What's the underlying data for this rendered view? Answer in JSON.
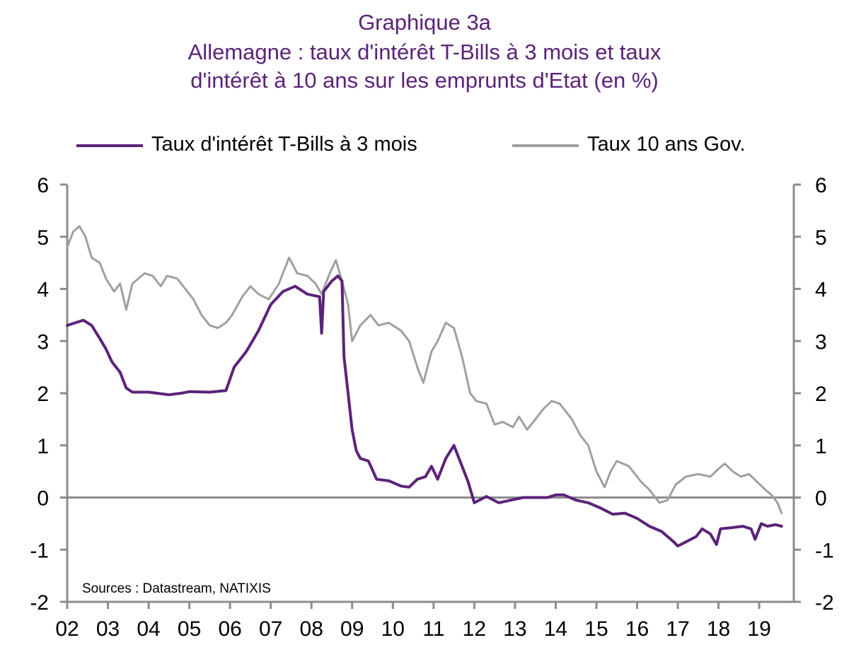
{
  "chart_data": {
    "type": "line",
    "title": "Graphique 3a",
    "subtitle_line1": "Allemagne : taux d'intérêt T-Bills à 3 mois et taux",
    "subtitle_line2": "d'intérêt à 10 ans sur les emprunts d'Etat (en %)",
    "source": "Sources : Datastream, NATIXIS",
    "ylim": [
      -2,
      6
    ],
    "y_ticks": [
      "-2",
      "-1",
      "0",
      "1",
      "2",
      "3",
      "4",
      "5",
      "6"
    ],
    "x_tick_labels": [
      "02",
      "03",
      "04",
      "05",
      "06",
      "07",
      "08",
      "09",
      "10",
      "11",
      "12",
      "13",
      "14",
      "15",
      "16",
      "17",
      "18",
      "19"
    ],
    "xlim": [
      2002.0,
      2019.85
    ],
    "legend_position": "top",
    "series": [
      {
        "name": "Taux d'intérêt T-Bills à 3 mois",
        "color": "#5b2379",
        "points": [
          [
            2002.0,
            3.3
          ],
          [
            2002.2,
            3.35
          ],
          [
            2002.4,
            3.4
          ],
          [
            2002.6,
            3.3
          ],
          [
            2002.8,
            3.05
          ],
          [
            2002.95,
            2.85
          ],
          [
            2003.1,
            2.6
          ],
          [
            2003.3,
            2.4
          ],
          [
            2003.45,
            2.1
          ],
          [
            2003.6,
            2.02
          ],
          [
            2004.0,
            2.02
          ],
          [
            2004.2,
            2.0
          ],
          [
            2004.5,
            1.97
          ],
          [
            2004.8,
            2.0
          ],
          [
            2005.0,
            2.03
          ],
          [
            2005.5,
            2.02
          ],
          [
            2005.9,
            2.05
          ],
          [
            2006.1,
            2.5
          ],
          [
            2006.4,
            2.8
          ],
          [
            2006.7,
            3.2
          ],
          [
            2007.0,
            3.7
          ],
          [
            2007.3,
            3.95
          ],
          [
            2007.6,
            4.05
          ],
          [
            2007.9,
            3.9
          ],
          [
            2008.2,
            3.85
          ],
          [
            2008.25,
            3.15
          ],
          [
            2008.3,
            3.95
          ],
          [
            2008.5,
            4.15
          ],
          [
            2008.65,
            4.25
          ],
          [
            2008.75,
            4.15
          ],
          [
            2008.8,
            2.7
          ],
          [
            2008.9,
            2.0
          ],
          [
            2009.0,
            1.3
          ],
          [
            2009.1,
            0.9
          ],
          [
            2009.2,
            0.75
          ],
          [
            2009.4,
            0.7
          ],
          [
            2009.6,
            0.35
          ],
          [
            2009.9,
            0.32
          ],
          [
            2010.2,
            0.22
          ],
          [
            2010.4,
            0.2
          ],
          [
            2010.6,
            0.35
          ],
          [
            2010.8,
            0.4
          ],
          [
            2010.95,
            0.6
          ],
          [
            2011.1,
            0.35
          ],
          [
            2011.3,
            0.75
          ],
          [
            2011.5,
            1.0
          ],
          [
            2011.65,
            0.7
          ],
          [
            2011.85,
            0.3
          ],
          [
            2012.0,
            -0.1
          ],
          [
            2012.3,
            0.02
          ],
          [
            2012.6,
            -0.1
          ],
          [
            2012.9,
            -0.05
          ],
          [
            2013.2,
            0.0
          ],
          [
            2013.5,
            0.0
          ],
          [
            2013.8,
            0.0
          ],
          [
            2014.0,
            0.05
          ],
          [
            2014.2,
            0.05
          ],
          [
            2014.5,
            -0.05
          ],
          [
            2014.8,
            -0.1
          ],
          [
            2015.1,
            -0.2
          ],
          [
            2015.4,
            -0.32
          ],
          [
            2015.7,
            -0.3
          ],
          [
            2016.0,
            -0.4
          ],
          [
            2016.3,
            -0.55
          ],
          [
            2016.6,
            -0.65
          ],
          [
            2016.9,
            -0.85
          ],
          [
            2017.0,
            -0.93
          ],
          [
            2017.2,
            -0.85
          ],
          [
            2017.45,
            -0.75
          ],
          [
            2017.6,
            -0.6
          ],
          [
            2017.8,
            -0.7
          ],
          [
            2017.95,
            -0.9
          ],
          [
            2018.05,
            -0.6
          ],
          [
            2018.3,
            -0.58
          ],
          [
            2018.6,
            -0.55
          ],
          [
            2018.8,
            -0.6
          ],
          [
            2018.9,
            -0.8
          ],
          [
            2019.05,
            -0.5
          ],
          [
            2019.2,
            -0.55
          ],
          [
            2019.4,
            -0.52
          ],
          [
            2019.55,
            -0.55
          ]
        ]
      },
      {
        "name": "Taux 10 ans Gov.",
        "color": "#a0a0a0",
        "points": [
          [
            2002.0,
            4.8
          ],
          [
            2002.15,
            5.1
          ],
          [
            2002.3,
            5.2
          ],
          [
            2002.45,
            5.0
          ],
          [
            2002.6,
            4.6
          ],
          [
            2002.8,
            4.5
          ],
          [
            2002.95,
            4.2
          ],
          [
            2003.15,
            3.95
          ],
          [
            2003.3,
            4.1
          ],
          [
            2003.45,
            3.6
          ],
          [
            2003.6,
            4.1
          ],
          [
            2003.9,
            4.3
          ],
          [
            2004.1,
            4.25
          ],
          [
            2004.3,
            4.05
          ],
          [
            2004.45,
            4.25
          ],
          [
            2004.7,
            4.2
          ],
          [
            2004.9,
            4.0
          ],
          [
            2005.1,
            3.8
          ],
          [
            2005.3,
            3.5
          ],
          [
            2005.5,
            3.3
          ],
          [
            2005.7,
            3.25
          ],
          [
            2005.9,
            3.35
          ],
          [
            2006.05,
            3.5
          ],
          [
            2006.3,
            3.85
          ],
          [
            2006.5,
            4.05
          ],
          [
            2006.7,
            3.9
          ],
          [
            2006.95,
            3.8
          ],
          [
            2007.2,
            4.1
          ],
          [
            2007.45,
            4.6
          ],
          [
            2007.65,
            4.3
          ],
          [
            2007.9,
            4.25
          ],
          [
            2008.1,
            4.1
          ],
          [
            2008.25,
            3.9
          ],
          [
            2008.45,
            4.3
          ],
          [
            2008.6,
            4.55
          ],
          [
            2008.75,
            4.15
          ],
          [
            2008.9,
            3.7
          ],
          [
            2009.0,
            3.0
          ],
          [
            2009.2,
            3.3
          ],
          [
            2009.45,
            3.5
          ],
          [
            2009.65,
            3.3
          ],
          [
            2009.9,
            3.35
          ],
          [
            2010.2,
            3.2
          ],
          [
            2010.4,
            3.0
          ],
          [
            2010.6,
            2.5
          ],
          [
            2010.75,
            2.2
          ],
          [
            2010.95,
            2.8
          ],
          [
            2011.1,
            3.0
          ],
          [
            2011.3,
            3.35
          ],
          [
            2011.5,
            3.25
          ],
          [
            2011.7,
            2.7
          ],
          [
            2011.9,
            2.0
          ],
          [
            2012.05,
            1.85
          ],
          [
            2012.3,
            1.8
          ],
          [
            2012.5,
            1.4
          ],
          [
            2012.7,
            1.45
          ],
          [
            2012.95,
            1.35
          ],
          [
            2013.1,
            1.55
          ],
          [
            2013.3,
            1.3
          ],
          [
            2013.5,
            1.5
          ],
          [
            2013.7,
            1.7
          ],
          [
            2013.9,
            1.85
          ],
          [
            2014.1,
            1.8
          ],
          [
            2014.4,
            1.5
          ],
          [
            2014.6,
            1.2
          ],
          [
            2014.8,
            1.0
          ],
          [
            2015.0,
            0.5
          ],
          [
            2015.2,
            0.2
          ],
          [
            2015.35,
            0.5
          ],
          [
            2015.5,
            0.7
          ],
          [
            2015.8,
            0.6
          ],
          [
            2016.1,
            0.3
          ],
          [
            2016.3,
            0.15
          ],
          [
            2016.55,
            -0.1
          ],
          [
            2016.75,
            -0.05
          ],
          [
            2016.95,
            0.25
          ],
          [
            2017.2,
            0.4
          ],
          [
            2017.5,
            0.45
          ],
          [
            2017.8,
            0.4
          ],
          [
            2018.0,
            0.55
          ],
          [
            2018.15,
            0.65
          ],
          [
            2018.35,
            0.5
          ],
          [
            2018.55,
            0.4
          ],
          [
            2018.75,
            0.45
          ],
          [
            2018.95,
            0.3
          ],
          [
            2019.15,
            0.15
          ],
          [
            2019.3,
            0.05
          ],
          [
            2019.45,
            -0.1
          ],
          [
            2019.55,
            -0.3
          ]
        ]
      }
    ]
  }
}
